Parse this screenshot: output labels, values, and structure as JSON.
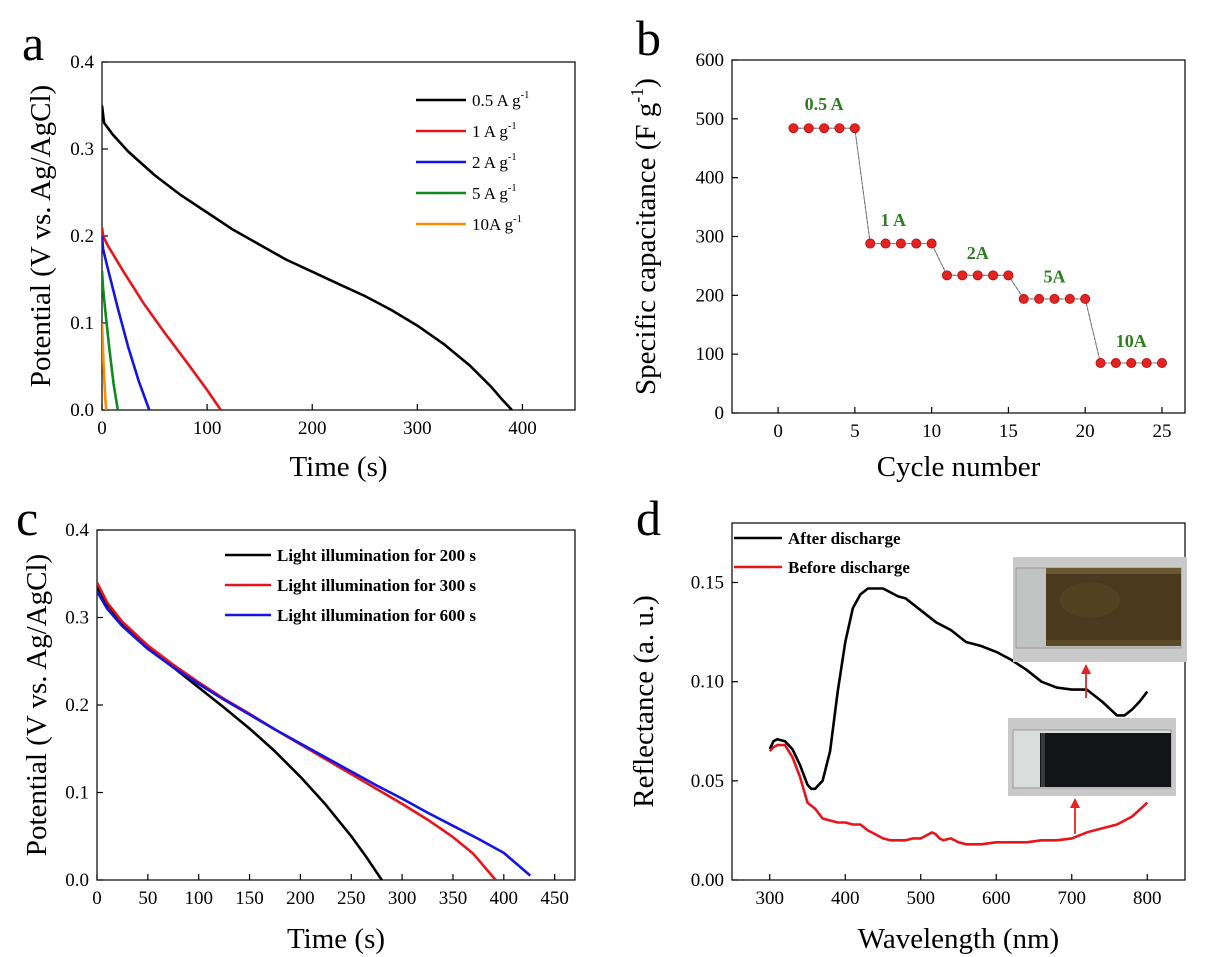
{
  "colors": {
    "black": "#000000",
    "red": "#e8141b",
    "blue": "#1414e6",
    "green": "#0f8a1f",
    "orange": "#ff8c00",
    "label_green": "#2e7d1e",
    "marker_red": "#e52222",
    "inset_bg": "#c9c9c9",
    "arrow_red": "#e52222"
  },
  "panel_labels": {
    "a": "a",
    "b": "b",
    "c": "c",
    "d": "d"
  },
  "chart_data": [
    {
      "id": "a",
      "type": "line",
      "xlabel": "Time (s)",
      "ylabel": "Potential (V vs. Ag/AgCl)",
      "xlim": [
        0,
        450
      ],
      "ylim": [
        0,
        0.4
      ],
      "xticks": [
        0,
        100,
        200,
        300,
        400
      ],
      "yticks": [
        0.0,
        0.1,
        0.2,
        0.3,
        0.4
      ],
      "legend_position": "top-right",
      "series": [
        {
          "name": "0.5 A g",
          "sup": "-1",
          "color": "#000000",
          "x": [
            0,
            2,
            10,
            25,
            50,
            75,
            100,
            125,
            150,
            175,
            200,
            225,
            250,
            275,
            300,
            325,
            350,
            370,
            380,
            390
          ],
          "y": [
            0.35,
            0.33,
            0.317,
            0.297,
            0.27,
            0.247,
            0.227,
            0.207,
            0.19,
            0.173,
            0.159,
            0.145,
            0.131,
            0.115,
            0.097,
            0.076,
            0.051,
            0.027,
            0.013,
            0.0
          ]
        },
        {
          "name": "1 A g",
          "sup": "-1",
          "color": "#e8141b",
          "x": [
            0,
            1,
            5,
            20,
            40,
            60,
            80,
            100,
            113
          ],
          "y": [
            0.21,
            0.2,
            0.19,
            0.16,
            0.122,
            0.088,
            0.056,
            0.023,
            0.0
          ]
        },
        {
          "name": "2 A g",
          "sup": "-1",
          "color": "#1414e6",
          "x": [
            0,
            1,
            5,
            15,
            25,
            35,
            45
          ],
          "y": [
            0.2,
            0.185,
            0.165,
            0.117,
            0.072,
            0.033,
            0.0
          ]
        },
        {
          "name": "5 A g",
          "sup": "-1",
          "color": "#0f8a1f",
          "x": [
            0,
            1,
            3,
            7,
            11,
            15
          ],
          "y": [
            0.16,
            0.14,
            0.115,
            0.07,
            0.03,
            0.0
          ]
        },
        {
          "name": "10A g",
          "sup": "-1",
          "color": "#ff8c00",
          "x": [
            0,
            0.5,
            1.5,
            3,
            4
          ],
          "y": [
            0.1,
            0.085,
            0.05,
            0.015,
            0.0
          ]
        }
      ]
    },
    {
      "id": "b",
      "type": "scatter",
      "xlabel": "Cycle number",
      "ylabel": "Specific capacitance (F g",
      "ylabel_sup": "-1",
      "ylabel_end": ")",
      "xlim": [
        -3,
        26.5
      ],
      "ylim": [
        0,
        600
      ],
      "xticks": [
        0,
        5,
        10,
        15,
        20,
        25
      ],
      "yticks": [
        0,
        100,
        200,
        300,
        400,
        500,
        600
      ],
      "x": [
        1,
        2,
        3,
        4,
        5,
        6,
        7,
        8,
        9,
        10,
        11,
        12,
        13,
        14,
        15,
        16,
        17,
        18,
        19,
        20,
        21,
        22,
        23,
        24,
        25
      ],
      "y": [
        484,
        484,
        484,
        484,
        484,
        288,
        288,
        288,
        288,
        288,
        234,
        234,
        234,
        234,
        234,
        194,
        194,
        194,
        194,
        194,
        85,
        85,
        85,
        85,
        85
      ],
      "annotations": [
        {
          "text": "0.5 A",
          "x": 3,
          "y": 515
        },
        {
          "text": "1 A",
          "x": 7.5,
          "y": 318
        },
        {
          "text": "2A",
          "x": 13,
          "y": 262
        },
        {
          "text": "5A",
          "x": 18,
          "y": 222
        },
        {
          "text": "10A",
          "x": 23,
          "y": 112
        }
      ]
    },
    {
      "id": "c",
      "type": "line",
      "xlabel": "Time (s)",
      "ylabel": "Potential (V vs. Ag/AgCl)",
      "xlim": [
        0,
        470
      ],
      "ylim": [
        0,
        0.4
      ],
      "xticks": [
        0,
        50,
        100,
        150,
        200,
        250,
        300,
        350,
        400,
        450
      ],
      "yticks": [
        0.0,
        0.1,
        0.2,
        0.3,
        0.4
      ],
      "legend_position": "top-right",
      "series": [
        {
          "name": "Light illumination for 200 s",
          "color": "#000000",
          "x": [
            0,
            10,
            25,
            50,
            75,
            100,
            125,
            150,
            175,
            200,
            225,
            250,
            265,
            280
          ],
          "y": [
            0.335,
            0.315,
            0.293,
            0.266,
            0.243,
            0.22,
            0.197,
            0.173,
            0.147,
            0.118,
            0.086,
            0.05,
            0.026,
            0.0
          ]
        },
        {
          "name": "Light illumination for 300 s",
          "color": "#e8141b",
          "x": [
            0,
            10,
            25,
            50,
            75,
            100,
            125,
            150,
            175,
            200,
            225,
            250,
            275,
            300,
            325,
            350,
            370,
            392
          ],
          "y": [
            0.34,
            0.317,
            0.295,
            0.268,
            0.246,
            0.226,
            0.207,
            0.19,
            0.172,
            0.155,
            0.138,
            0.121,
            0.104,
            0.087,
            0.069,
            0.049,
            0.03,
            0.0
          ]
        },
        {
          "name": "Light illumination for 600 s",
          "color": "#1414e6",
          "x": [
            0,
            10,
            25,
            50,
            75,
            100,
            125,
            150,
            175,
            200,
            225,
            250,
            275,
            300,
            325,
            350,
            375,
            400,
            426
          ],
          "y": [
            0.33,
            0.31,
            0.29,
            0.264,
            0.243,
            0.224,
            0.206,
            0.189,
            0.172,
            0.156,
            0.14,
            0.124,
            0.108,
            0.093,
            0.077,
            0.062,
            0.047,
            0.031,
            0.005
          ]
        }
      ]
    },
    {
      "id": "d",
      "type": "line",
      "xlabel": "Wavelength (nm)",
      "ylabel": "Reflectance (a. u.)",
      "xlim": [
        250,
        850
      ],
      "ylim": [
        0,
        0.18
      ],
      "xticks": [
        300,
        400,
        500,
        600,
        700,
        800
      ],
      "yticks": [
        0.0,
        0.05,
        0.1,
        0.15
      ],
      "ytick_labels": [
        "0.00",
        "0.05",
        "0.10",
        "0.15"
      ],
      "legend_position": "top-left",
      "series": [
        {
          "name": "After discharge",
          "color": "#000000",
          "x": [
            300,
            305,
            310,
            320,
            330,
            340,
            350,
            355,
            360,
            370,
            380,
            390,
            400,
            410,
            420,
            430,
            440,
            450,
            460,
            470,
            480,
            500,
            520,
            540,
            560,
            580,
            600,
            620,
            640,
            660,
            680,
            700,
            720,
            740,
            760,
            770,
            780,
            790,
            800
          ],
          "y": [
            0.066,
            0.07,
            0.071,
            0.07,
            0.066,
            0.058,
            0.048,
            0.046,
            0.046,
            0.05,
            0.065,
            0.095,
            0.12,
            0.137,
            0.144,
            0.147,
            0.147,
            0.147,
            0.145,
            0.143,
            0.142,
            0.136,
            0.13,
            0.126,
            0.12,
            0.118,
            0.115,
            0.111,
            0.106,
            0.1,
            0.097,
            0.096,
            0.096,
            0.09,
            0.083,
            0.083,
            0.086,
            0.09,
            0.095
          ]
        },
        {
          "name": "Before discharge",
          "color": "#e8141b",
          "x": [
            300,
            305,
            310,
            320,
            330,
            340,
            350,
            360,
            370,
            380,
            390,
            400,
            410,
            420,
            430,
            440,
            450,
            460,
            470,
            480,
            490,
            500,
            510,
            515,
            520,
            525,
            530,
            540,
            550,
            560,
            580,
            600,
            620,
            640,
            660,
            680,
            700,
            720,
            740,
            760,
            780,
            800
          ],
          "y": [
            0.065,
            0.067,
            0.068,
            0.068,
            0.062,
            0.052,
            0.039,
            0.036,
            0.031,
            0.03,
            0.029,
            0.029,
            0.028,
            0.028,
            0.025,
            0.023,
            0.021,
            0.02,
            0.02,
            0.02,
            0.021,
            0.021,
            0.023,
            0.024,
            0.023,
            0.021,
            0.02,
            0.021,
            0.019,
            0.018,
            0.018,
            0.019,
            0.019,
            0.019,
            0.02,
            0.02,
            0.021,
            0.024,
            0.026,
            0.028,
            0.032,
            0.039
          ]
        }
      ]
    }
  ]
}
